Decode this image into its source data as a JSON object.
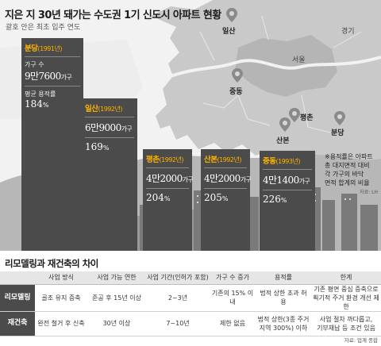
{
  "header": {
    "title": "지은 지 30년 돼가는 수도권 1기 신도시 아파트 현황",
    "subtitle": "괄호 안은 최초 입주 연도"
  },
  "map": {
    "regions": {
      "gyeonggi": "경기",
      "seoul": "서울"
    },
    "pins": [
      "일산",
      "중동",
      "평촌",
      "산본",
      "분당"
    ]
  },
  "cities": [
    {
      "name": "분당",
      "year": "(1991년)",
      "households_label": "가구 수",
      "households_num": "9만7600",
      "households_unit": "가구",
      "far_label": "평균 용적률",
      "far_num": "184",
      "far_unit": "%",
      "households": 97600,
      "far": 184
    },
    {
      "name": "일산",
      "year": "(1992년)",
      "households_num": "6만9000",
      "households_unit": "가구",
      "far_num": "169",
      "far_unit": "%",
      "households": 69000,
      "far": 169
    },
    {
      "name": "평촌",
      "year": "(1992년)",
      "households_num": "4만2000",
      "households_unit": "가구",
      "far_num": "204",
      "far_unit": "%",
      "households": 42000,
      "far": 204
    },
    {
      "name": "산본",
      "year": "(1992년)",
      "households_num": "4만2000",
      "households_unit": "가구",
      "far_num": "205",
      "far_unit": "%",
      "households": 42000,
      "far": 205
    },
    {
      "name": "중동",
      "year": "(1993년)",
      "households_num": "4만1400",
      "households_unit": "가구",
      "far_num": "226",
      "far_unit": "%",
      "households": 41400,
      "far": 226
    }
  ],
  "note": {
    "lines": [
      "※용적률은 아파트",
      "총 대지면적 대비",
      "각 가구의 바닥",
      "면적 합계의 비율"
    ],
    "source": "자료: LH"
  },
  "table": {
    "title": "리모델링과 재건축의 차이",
    "headers": [
      "",
      "사업 방식",
      "사업 가능 연한",
      "사업 기간(인허가 포함)",
      "가구 수 증가",
      "용적률",
      "한계"
    ],
    "rows": [
      {
        "type": "리모델링",
        "cells": [
          "골조 유지 증축",
          "준공 후 15년 이상",
          "2~3년",
          "기존의 15% 이내",
          "법적 상한 초과 허용"
        ],
        "limit": [
          "기존 평면 중심 증축으로",
          "획기적 주거 환경 개선 제한"
        ]
      },
      {
        "type": "재건축",
        "cells": [
          "완전 철거 후 신축",
          "30년 이상",
          "7~10년",
          "제한 없음"
        ],
        "far": [
          "법적 상한(3종 주거",
          "지역 300%) 이하"
        ],
        "limit": [
          "사업 절차 까다롭고,",
          "기부채납 등 조건 있음"
        ]
      }
    ],
    "source": "자료: 업계 종합"
  },
  "colors": {
    "bar": "#4b4b4b",
    "accent": "#ffb300",
    "header_bg": "#e6e6e6"
  }
}
